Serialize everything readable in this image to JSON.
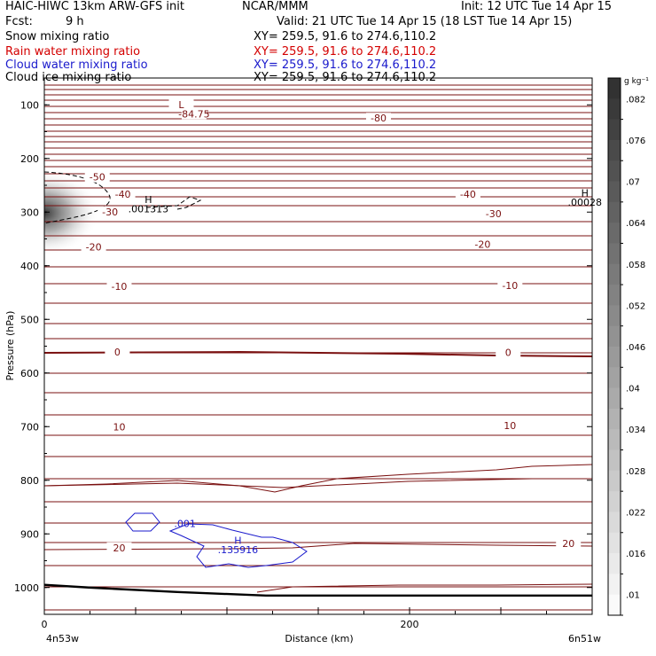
{
  "header": {
    "model": "HAIC-HIWC 13km ARW-GFS init",
    "org": "NCAR/MMM",
    "init": "Init: 12 UTC Tue 14 Apr 15",
    "fcst_label": "Fcst:",
    "fcst_value": "9 h",
    "valid": "Valid: 21 UTC Tue 14 Apr 15 (18 LST Tue 14 Apr 15)"
  },
  "fields": [
    {
      "name": "Snow mixing ratio",
      "xy": "XY= 259.5, 91.6 to 274.6,110.2",
      "color": "#000000"
    },
    {
      "name": "Rain water mixing ratio",
      "xy": "XY= 259.5, 91.6 to 274.6,110.2",
      "color": "#d40000"
    },
    {
      "name": "Cloud water mixing ratio",
      "xy": "XY= 259.5, 91.6 to 274.6,110.2",
      "color": "#1a1acc"
    },
    {
      "name": "Cloud ice mixing ratio",
      "xy": "XY= 259.5, 91.6 to 274.6,110.2",
      "color": "#000000"
    }
  ],
  "chart_data": {
    "type": "cross-section",
    "xlabel": "Distance (km)",
    "ylabel": "Pressure (hPa)",
    "xlim": [
      0,
      300
    ],
    "ylim": [
      50,
      1050
    ],
    "x_ticks": [
      0,
      200
    ],
    "y_ticks": [
      100,
      200,
      300,
      400,
      500,
      600,
      700,
      800,
      900,
      1000
    ],
    "x_endpoints": {
      "left": "4n53w",
      "right": "6n51w"
    },
    "colorbar": {
      "unit": "g kg⁻¹",
      "ticks": [
        ".082",
        ".076",
        ".07",
        ".064",
        ".058",
        ".052",
        ".046",
        ".04",
        ".034",
        ".028",
        ".022",
        ".016",
        ".01"
      ]
    },
    "temperature_labels": [
      {
        "text": "-84.75",
        "x": 82,
        "p": 120
      },
      {
        "text": "L",
        "x": 75,
        "p": 103
      },
      {
        "text": "-80",
        "x": 183,
        "p": 128
      },
      {
        "text": "-50",
        "x": 29,
        "p": 238
      },
      {
        "text": "-40",
        "x": 43,
        "p": 270
      },
      {
        "text": "-40",
        "x": 232,
        "p": 270
      },
      {
        "text": "-30",
        "x": 36,
        "p": 303
      },
      {
        "text": "-30",
        "x": 246,
        "p": 306
      },
      {
        "text": "-20",
        "x": 27,
        "p": 368
      },
      {
        "text": "-20",
        "x": 240,
        "p": 363
      },
      {
        "text": "-10",
        "x": 41,
        "p": 442
      },
      {
        "text": "-10",
        "x": 255,
        "p": 440
      },
      {
        "text": "0",
        "x": 40,
        "p": 564
      },
      {
        "text": "0",
        "x": 254,
        "p": 565
      },
      {
        "text": "10",
        "x": 41,
        "p": 704
      },
      {
        "text": "10",
        "x": 255,
        "p": 701
      },
      {
        "text": "20",
        "x": 41,
        "p": 929
      },
      {
        "text": "20",
        "x": 287,
        "p": 921
      }
    ],
    "max_labels": [
      {
        "text": "H",
        "x": 57,
        "p": 283,
        "value": ".001313",
        "vp": 300
      },
      {
        "text": "H",
        "x": 296,
        "p": 271,
        "value": ".00028",
        "vp": 288
      },
      {
        "text": "H",
        "x": 106,
        "p": 919,
        "value": ".135916",
        "vp": 936
      }
    ],
    "cloud_water_label": {
      "text": ".001",
      "x": 77,
      "p": 887
    },
    "terrain_p": [
      995,
      1000,
      1010,
      1015
    ]
  },
  "colors": {
    "temperature": "#7a1010",
    "cloud_water": "#1a1acc",
    "ice": "#000000",
    "terrain": "#000000"
  }
}
